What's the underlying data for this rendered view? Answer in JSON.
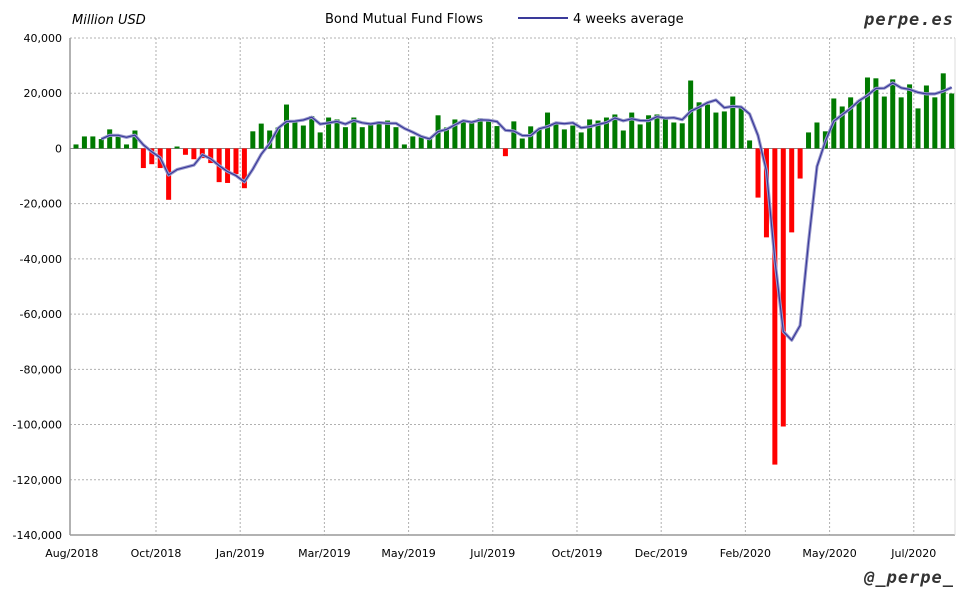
{
  "chart_data": {
    "type": "bar",
    "title": "Bond Mutual Fund Flows",
    "ylabel": "Million USD",
    "legend": [
      {
        "name": "4 weeks average",
        "type": "line",
        "color": "#3a3a9a"
      }
    ],
    "legend_placement": "top-center",
    "source": "perpe.es",
    "credit": "@_perpe_",
    "ylim": [
      -140000,
      40000
    ],
    "y_ticks": [
      40000,
      20000,
      0,
      -20000,
      -40000,
      -60000,
      -80000,
      -100000,
      -120000,
      -140000
    ],
    "y_tick_labels": [
      "40,000",
      "20,000",
      "0",
      "-20,000",
      "-40,000",
      "-60,000",
      "-80,000",
      "-100,000",
      "-120,000",
      "-140,000"
    ],
    "x_tick_labels": [
      "Aug/2018",
      "Oct/2018",
      "Jan/2019",
      "Mar/2019",
      "May/2019",
      "Jul/2019",
      "Oct/2019",
      "Dec/2019",
      "Feb/2020",
      "May/2020",
      "Jul/2020"
    ],
    "x_tick_week_index": [
      -0.5,
      9.5,
      19.5,
      29.5,
      39.5,
      49.5,
      59.5,
      69.5,
      79.5,
      89.5,
      99.5
    ],
    "grid": true,
    "colors": {
      "positive": "#007a00",
      "negative": "#ff0000",
      "average": "#3a3a9a",
      "grid": "#b0b0b0"
    },
    "weekly_flows": [
      1450,
      4350,
      4350,
      3400,
      6900,
      4350,
      1450,
      6500,
      -7100,
      -5700,
      -7100,
      -18600,
      700,
      -2300,
      -3900,
      -3500,
      -5300,
      -12200,
      -12500,
      -9300,
      -14400,
      6200,
      9000,
      6500,
      7600,
      15900,
      9400,
      8300,
      11700,
      5800,
      11200,
      10500,
      7700,
      11200,
      7700,
      8800,
      9800,
      10100,
      7700,
      1450,
      4350,
      4000,
      4000,
      12000,
      7600,
      10500,
      10100,
      9800,
      10900,
      10100,
      8100,
      -2800,
      9800,
      3600,
      8000,
      7100,
      13000,
      8900,
      6900,
      8300,
      5800,
      10500,
      10100,
      11200,
      12300,
      6500,
      13000,
      8700,
      12000,
      12300,
      10900,
      9400,
      9100,
      24600,
      16700,
      15900,
      13000,
      13400,
      18800,
      14800,
      2900,
      -17800,
      -32200,
      -114500,
      -100700,
      -30400,
      -10900,
      5800,
      9400,
      6200,
      18100,
      15200,
      18500,
      17400,
      25700,
      25400,
      18800,
      25000,
      18500,
      23200,
      14500,
      22800,
      18500,
      27200,
      19900
    ]
  }
}
